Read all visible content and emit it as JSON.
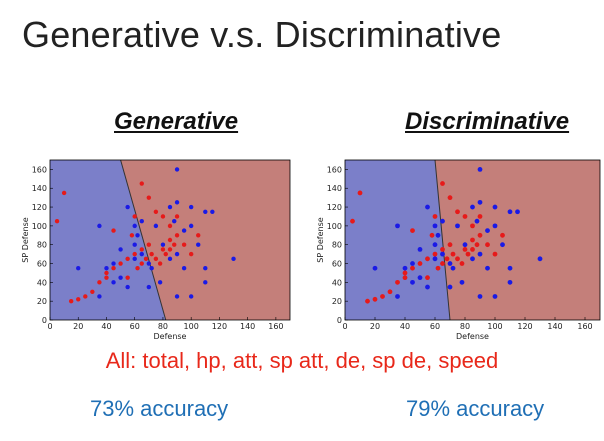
{
  "slide": {
    "title": "Generative v.s. Discriminative",
    "left_heading": "Generative",
    "right_heading": "Discriminative",
    "features_line": "All: total, hp, att, sp att, de, sp de, speed",
    "left_accuracy": "73% accuracy",
    "right_accuracy": "79% accuracy"
  },
  "colors": {
    "blue_region": "#7b7fc9",
    "red_region": "#c47f7a",
    "blue_point": "#1a1ae6",
    "red_point": "#e61a1a"
  },
  "chart_data": [
    {
      "type": "scatter",
      "title": "",
      "xlabel": "Defense",
      "ylabel": "SP Defense",
      "xlim": [
        0,
        170
      ],
      "ylim": [
        0,
        170
      ],
      "xticks": [
        "0",
        "20",
        "40",
        "60",
        "80",
        "100",
        "120",
        "140",
        "160"
      ],
      "yticks": [
        "0",
        "20",
        "40",
        "60",
        "80",
        "100",
        "120",
        "140",
        "160"
      ],
      "boundary": [
        [
          50,
          170
        ],
        [
          82,
          0
        ]
      ],
      "regions": {
        "left": "blue",
        "right": "red"
      },
      "series": [
        {
          "color": "blue",
          "points": [
            [
              20,
              55
            ],
            [
              35,
              100
            ],
            [
              40,
              55
            ],
            [
              45,
              60
            ],
            [
              50,
              45
            ],
            [
              55,
              35
            ],
            [
              50,
              75
            ],
            [
              60,
              65
            ],
            [
              60,
              80
            ],
            [
              65,
              70
            ],
            [
              70,
              60
            ],
            [
              62,
              90
            ],
            [
              72,
              55
            ],
            [
              78,
              40
            ],
            [
              85,
              120
            ],
            [
              90,
              125
            ],
            [
              90,
              160
            ],
            [
              95,
              95
            ],
            [
              90,
              70
            ],
            [
              95,
              55
            ],
            [
              100,
              120
            ],
            [
              105,
              80
            ],
            [
              110,
              115
            ],
            [
              115,
              115
            ],
            [
              110,
              40
            ],
            [
              130,
              65
            ],
            [
              100,
              25
            ],
            [
              90,
              25
            ],
            [
              80,
              80
            ],
            [
              85,
              65
            ],
            [
              55,
              120
            ],
            [
              60,
              100
            ],
            [
              65,
              105
            ],
            [
              75,
              100
            ],
            [
              35,
              25
            ],
            [
              45,
              40
            ],
            [
              70,
              35
            ],
            [
              88,
              105
            ],
            [
              110,
              55
            ],
            [
              100,
              100
            ]
          ]
        },
        {
          "color": "red",
          "points": [
            [
              5,
              105
            ],
            [
              10,
              135
            ],
            [
              15,
              20
            ],
            [
              20,
              22
            ],
            [
              25,
              25
            ],
            [
              30,
              30
            ],
            [
              35,
              40
            ],
            [
              40,
              45
            ],
            [
              40,
              50
            ],
            [
              45,
              55
            ],
            [
              50,
              60
            ],
            [
              55,
              65
            ],
            [
              55,
              45
            ],
            [
              60,
              70
            ],
            [
              65,
              60
            ],
            [
              65,
              75
            ],
            [
              70,
              80
            ],
            [
              75,
              65
            ],
            [
              80,
              75
            ],
            [
              85,
              85
            ],
            [
              85,
              75
            ],
            [
              90,
              90
            ],
            [
              95,
              80
            ],
            [
              100,
              70
            ],
            [
              105,
              90
            ],
            [
              90,
              110
            ],
            [
              80,
              110
            ],
            [
              85,
              100
            ],
            [
              75,
              115
            ],
            [
              70,
              130
            ],
            [
              65,
              145
            ],
            [
              45,
              95
            ],
            [
              58,
              90
            ],
            [
              62,
              55
            ],
            [
              68,
              65
            ],
            [
              72,
              70
            ],
            [
              78,
              60
            ],
            [
              82,
              70
            ],
            [
              60,
              110
            ],
            [
              88,
              80
            ]
          ]
        }
      ]
    },
    {
      "type": "scatter",
      "title": "",
      "xlabel": "Defense",
      "ylabel": "SP Defense",
      "xlim": [
        0,
        170
      ],
      "ylim": [
        0,
        170
      ],
      "xticks": [
        "0",
        "20",
        "40",
        "60",
        "80",
        "100",
        "120",
        "140",
        "160"
      ],
      "yticks": [
        "0",
        "20",
        "40",
        "60",
        "80",
        "100",
        "120",
        "140",
        "160"
      ],
      "boundary": [
        [
          60,
          170
        ],
        [
          70,
          0
        ]
      ],
      "regions": {
        "left": "blue",
        "right": "red"
      },
      "series": [
        {
          "color": "blue",
          "points": [
            [
              20,
              55
            ],
            [
              35,
              100
            ],
            [
              40,
              55
            ],
            [
              45,
              60
            ],
            [
              50,
              45
            ],
            [
              55,
              35
            ],
            [
              50,
              75
            ],
            [
              60,
              65
            ],
            [
              60,
              80
            ],
            [
              65,
              70
            ],
            [
              70,
              60
            ],
            [
              62,
              90
            ],
            [
              72,
              55
            ],
            [
              78,
              40
            ],
            [
              85,
              120
            ],
            [
              90,
              125
            ],
            [
              90,
              160
            ],
            [
              95,
              95
            ],
            [
              90,
              70
            ],
            [
              95,
              55
            ],
            [
              100,
              120
            ],
            [
              105,
              80
            ],
            [
              110,
              115
            ],
            [
              115,
              115
            ],
            [
              110,
              40
            ],
            [
              130,
              65
            ],
            [
              100,
              25
            ],
            [
              90,
              25
            ],
            [
              80,
              80
            ],
            [
              85,
              65
            ],
            [
              55,
              120
            ],
            [
              60,
              100
            ],
            [
              65,
              105
            ],
            [
              75,
              100
            ],
            [
              35,
              25
            ],
            [
              45,
              40
            ],
            [
              70,
              35
            ],
            [
              88,
              105
            ],
            [
              110,
              55
            ],
            [
              100,
              100
            ]
          ]
        },
        {
          "color": "red",
          "points": [
            [
              5,
              105
            ],
            [
              10,
              135
            ],
            [
              15,
              20
            ],
            [
              20,
              22
            ],
            [
              25,
              25
            ],
            [
              30,
              30
            ],
            [
              35,
              40
            ],
            [
              40,
              45
            ],
            [
              40,
              50
            ],
            [
              45,
              55
            ],
            [
              50,
              60
            ],
            [
              55,
              65
            ],
            [
              55,
              45
            ],
            [
              60,
              70
            ],
            [
              65,
              60
            ],
            [
              65,
              75
            ],
            [
              70,
              80
            ],
            [
              75,
              65
            ],
            [
              80,
              75
            ],
            [
              85,
              85
            ],
            [
              85,
              75
            ],
            [
              90,
              90
            ],
            [
              95,
              80
            ],
            [
              100,
              70
            ],
            [
              105,
              90
            ],
            [
              90,
              110
            ],
            [
              80,
              110
            ],
            [
              85,
              100
            ],
            [
              75,
              115
            ],
            [
              70,
              130
            ],
            [
              65,
              145
            ],
            [
              45,
              95
            ],
            [
              58,
              90
            ],
            [
              62,
              55
            ],
            [
              68,
              65
            ],
            [
              72,
              70
            ],
            [
              78,
              60
            ],
            [
              82,
              70
            ],
            [
              60,
              110
            ],
            [
              88,
              80
            ]
          ]
        }
      ]
    }
  ]
}
